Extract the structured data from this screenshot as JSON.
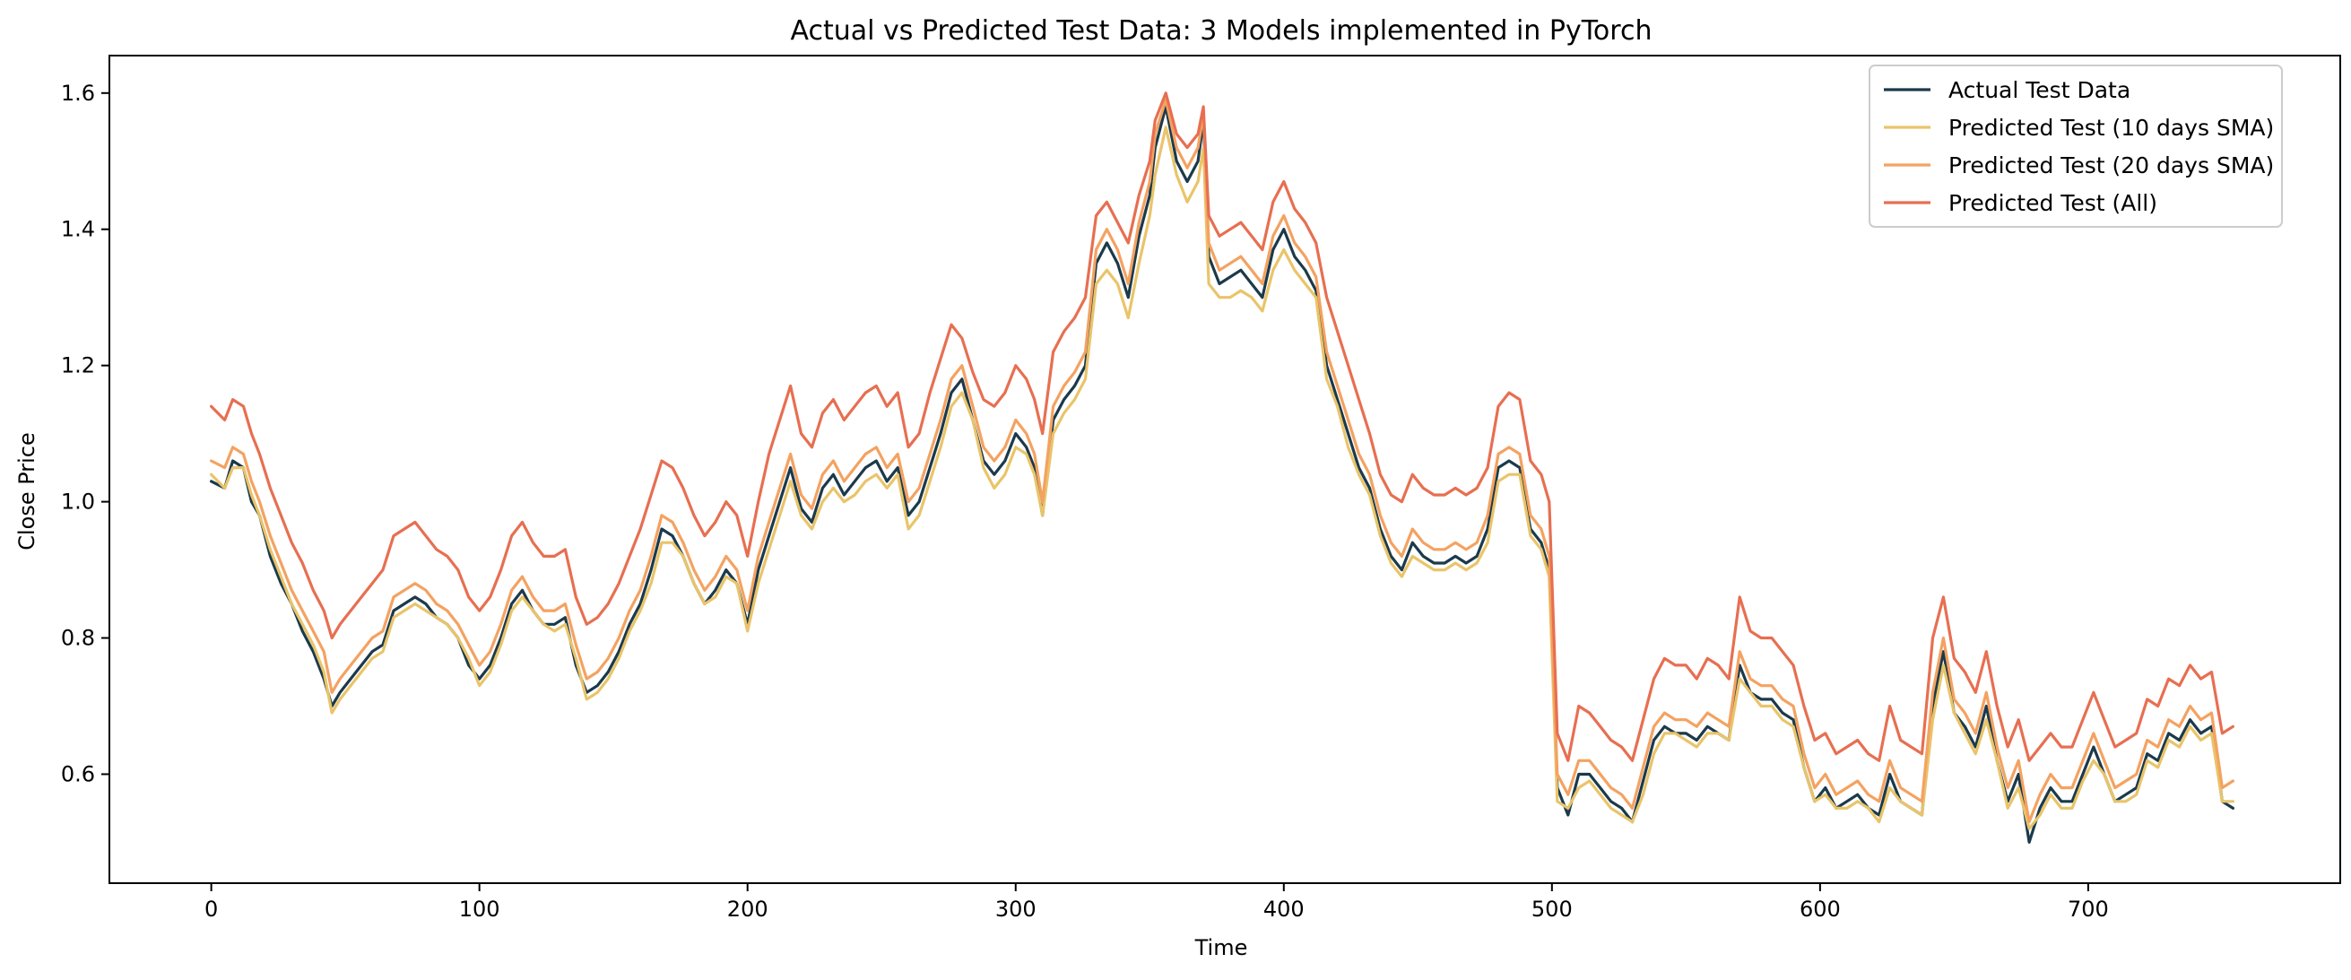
{
  "chart_data": {
    "type": "line",
    "title": "Actual vs Predicted Test Data: 3 Models implemented in PyTorch",
    "xlabel": "Time",
    "ylabel": "Close Price",
    "xlim": [
      -38,
      794
    ],
    "ylim": [
      0.44,
      1.655
    ],
    "xticks": [
      0,
      100,
      200,
      300,
      400,
      500,
      600,
      700
    ],
    "yticks": [
      0.6,
      0.8,
      1.0,
      1.2,
      1.4,
      1.6
    ],
    "grid": false,
    "legend_position": "top-right",
    "x": [
      0,
      5,
      8,
      12,
      15,
      18,
      22,
      26,
      30,
      34,
      38,
      42,
      45,
      48,
      52,
      56,
      60,
      64,
      68,
      72,
      76,
      80,
      84,
      88,
      92,
      96,
      100,
      104,
      108,
      112,
      116,
      120,
      124,
      128,
      132,
      136,
      140,
      144,
      148,
      152,
      156,
      160,
      164,
      168,
      172,
      176,
      180,
      184,
      188,
      192,
      196,
      200,
      204,
      208,
      212,
      216,
      220,
      224,
      228,
      232,
      236,
      240,
      244,
      248,
      252,
      256,
      260,
      264,
      268,
      272,
      276,
      280,
      284,
      288,
      292,
      296,
      300,
      304,
      307,
      310,
      314,
      318,
      322,
      326,
      330,
      334,
      338,
      342,
      346,
      350,
      352,
      356,
      360,
      364,
      368,
      370,
      372,
      376,
      380,
      384,
      388,
      392,
      396,
      400,
      404,
      408,
      412,
      416,
      420,
      424,
      428,
      432,
      436,
      440,
      444,
      448,
      452,
      456,
      460,
      464,
      468,
      472,
      476,
      480,
      484,
      488,
      492,
      496,
      499,
      502,
      506,
      510,
      514,
      518,
      522,
      526,
      530,
      534,
      538,
      542,
      546,
      550,
      554,
      558,
      562,
      566,
      570,
      574,
      578,
      582,
      586,
      590,
      594,
      598,
      602,
      606,
      610,
      614,
      618,
      622,
      626,
      630,
      634,
      638,
      642,
      646,
      650,
      654,
      658,
      662,
      666,
      670,
      674,
      678,
      682,
      686,
      690,
      694,
      698,
      702,
      706,
      710,
      714,
      718,
      722,
      726,
      730,
      734,
      738,
      742,
      746,
      750,
      754
    ],
    "series": [
      {
        "name": "Actual Test Data",
        "color": "#1b3a4b",
        "values": [
          1.03,
          1.02,
          1.06,
          1.05,
          1.0,
          0.98,
          0.92,
          0.88,
          0.85,
          0.81,
          0.78,
          0.74,
          0.7,
          0.72,
          0.74,
          0.76,
          0.78,
          0.79,
          0.84,
          0.85,
          0.86,
          0.85,
          0.83,
          0.82,
          0.8,
          0.76,
          0.74,
          0.76,
          0.8,
          0.85,
          0.87,
          0.84,
          0.82,
          0.82,
          0.83,
          0.76,
          0.72,
          0.73,
          0.75,
          0.78,
          0.82,
          0.85,
          0.9,
          0.96,
          0.95,
          0.92,
          0.88,
          0.85,
          0.87,
          0.9,
          0.88,
          0.82,
          0.9,
          0.95,
          1.0,
          1.05,
          0.99,
          0.97,
          1.02,
          1.04,
          1.01,
          1.03,
          1.05,
          1.06,
          1.03,
          1.05,
          0.98,
          1.0,
          1.05,
          1.1,
          1.16,
          1.18,
          1.12,
          1.06,
          1.04,
          1.06,
          1.1,
          1.08,
          1.05,
          0.98,
          1.12,
          1.15,
          1.17,
          1.2,
          1.35,
          1.38,
          1.35,
          1.3,
          1.39,
          1.45,
          1.52,
          1.58,
          1.5,
          1.47,
          1.5,
          1.56,
          1.36,
          1.32,
          1.33,
          1.34,
          1.32,
          1.3,
          1.37,
          1.4,
          1.36,
          1.34,
          1.31,
          1.2,
          1.15,
          1.1,
          1.05,
          1.02,
          0.96,
          0.92,
          0.9,
          0.94,
          0.92,
          0.91,
          0.91,
          0.92,
          0.91,
          0.92,
          0.96,
          1.05,
          1.06,
          1.05,
          0.96,
          0.94,
          0.9,
          0.58,
          0.54,
          0.6,
          0.6,
          0.58,
          0.56,
          0.55,
          0.53,
          0.59,
          0.65,
          0.67,
          0.66,
          0.66,
          0.65,
          0.67,
          0.66,
          0.65,
          0.76,
          0.72,
          0.71,
          0.71,
          0.69,
          0.68,
          0.61,
          0.56,
          0.58,
          0.55,
          0.56,
          0.57,
          0.55,
          0.54,
          0.6,
          0.56,
          0.55,
          0.54,
          0.7,
          0.78,
          0.69,
          0.67,
          0.64,
          0.7,
          0.62,
          0.56,
          0.6,
          0.5,
          0.55,
          0.58,
          0.56,
          0.56,
          0.6,
          0.64,
          0.6,
          0.56,
          0.57,
          0.58,
          0.63,
          0.62,
          0.66,
          0.65,
          0.68,
          0.66,
          0.67,
          0.56,
          0.55
        ]
      },
      {
        "name": "Predicted Test (10 days SMA)",
        "color": "#e9c46a",
        "values": [
          1.04,
          1.02,
          1.05,
          1.05,
          1.01,
          0.98,
          0.93,
          0.89,
          0.85,
          0.82,
          0.79,
          0.75,
          0.69,
          0.71,
          0.73,
          0.75,
          0.77,
          0.78,
          0.83,
          0.84,
          0.85,
          0.84,
          0.83,
          0.82,
          0.8,
          0.77,
          0.73,
          0.75,
          0.79,
          0.84,
          0.86,
          0.84,
          0.82,
          0.81,
          0.82,
          0.77,
          0.71,
          0.72,
          0.74,
          0.77,
          0.81,
          0.84,
          0.88,
          0.94,
          0.94,
          0.92,
          0.88,
          0.85,
          0.86,
          0.89,
          0.88,
          0.81,
          0.88,
          0.93,
          0.98,
          1.03,
          0.98,
          0.96,
          1.0,
          1.02,
          1.0,
          1.01,
          1.03,
          1.04,
          1.02,
          1.04,
          0.96,
          0.98,
          1.03,
          1.08,
          1.14,
          1.16,
          1.12,
          1.05,
          1.02,
          1.04,
          1.08,
          1.07,
          1.04,
          0.98,
          1.1,
          1.13,
          1.15,
          1.18,
          1.32,
          1.34,
          1.32,
          1.27,
          1.35,
          1.42,
          1.48,
          1.55,
          1.48,
          1.44,
          1.47,
          1.52,
          1.32,
          1.3,
          1.3,
          1.31,
          1.3,
          1.28,
          1.34,
          1.37,
          1.34,
          1.32,
          1.3,
          1.18,
          1.14,
          1.08,
          1.04,
          1.01,
          0.95,
          0.91,
          0.89,
          0.92,
          0.91,
          0.9,
          0.9,
          0.91,
          0.9,
          0.91,
          0.94,
          1.03,
          1.04,
          1.04,
          0.95,
          0.93,
          0.89,
          0.56,
          0.55,
          0.58,
          0.59,
          0.57,
          0.55,
          0.54,
          0.53,
          0.57,
          0.63,
          0.66,
          0.66,
          0.65,
          0.64,
          0.66,
          0.66,
          0.65,
          0.74,
          0.72,
          0.7,
          0.7,
          0.68,
          0.67,
          0.61,
          0.56,
          0.57,
          0.55,
          0.55,
          0.56,
          0.55,
          0.53,
          0.58,
          0.56,
          0.55,
          0.54,
          0.68,
          0.76,
          0.69,
          0.66,
          0.63,
          0.68,
          0.62,
          0.55,
          0.58,
          0.52,
          0.54,
          0.57,
          0.55,
          0.55,
          0.59,
          0.62,
          0.6,
          0.56,
          0.56,
          0.57,
          0.62,
          0.61,
          0.65,
          0.64,
          0.67,
          0.65,
          0.66,
          0.56,
          0.56
        ]
      },
      {
        "name": "Predicted Test (20 days SMA)",
        "color": "#f4a261",
        "values": [
          1.06,
          1.05,
          1.08,
          1.07,
          1.03,
          1.0,
          0.95,
          0.91,
          0.87,
          0.84,
          0.81,
          0.78,
          0.72,
          0.74,
          0.76,
          0.78,
          0.8,
          0.81,
          0.86,
          0.87,
          0.88,
          0.87,
          0.85,
          0.84,
          0.82,
          0.79,
          0.76,
          0.78,
          0.82,
          0.87,
          0.89,
          0.86,
          0.84,
          0.84,
          0.85,
          0.79,
          0.74,
          0.75,
          0.77,
          0.8,
          0.84,
          0.87,
          0.92,
          0.98,
          0.97,
          0.94,
          0.9,
          0.87,
          0.89,
          0.92,
          0.9,
          0.84,
          0.92,
          0.97,
          1.02,
          1.07,
          1.01,
          0.99,
          1.04,
          1.06,
          1.03,
          1.05,
          1.07,
          1.08,
          1.05,
          1.07,
          1.0,
          1.02,
          1.07,
          1.12,
          1.18,
          1.2,
          1.14,
          1.08,
          1.06,
          1.08,
          1.12,
          1.1,
          1.07,
          1.0,
          1.14,
          1.17,
          1.19,
          1.22,
          1.37,
          1.4,
          1.37,
          1.32,
          1.41,
          1.47,
          1.54,
          1.59,
          1.52,
          1.49,
          1.52,
          1.57,
          1.38,
          1.34,
          1.35,
          1.36,
          1.34,
          1.32,
          1.39,
          1.42,
          1.38,
          1.36,
          1.33,
          1.22,
          1.17,
          1.12,
          1.07,
          1.04,
          0.98,
          0.94,
          0.92,
          0.96,
          0.94,
          0.93,
          0.93,
          0.94,
          0.93,
          0.94,
          0.98,
          1.07,
          1.08,
          1.07,
          0.98,
          0.96,
          0.92,
          0.6,
          0.57,
          0.62,
          0.62,
          0.6,
          0.58,
          0.57,
          0.55,
          0.61,
          0.67,
          0.69,
          0.68,
          0.68,
          0.67,
          0.69,
          0.68,
          0.67,
          0.78,
          0.74,
          0.73,
          0.73,
          0.71,
          0.7,
          0.63,
          0.58,
          0.6,
          0.57,
          0.58,
          0.59,
          0.57,
          0.56,
          0.62,
          0.58,
          0.57,
          0.56,
          0.72,
          0.8,
          0.71,
          0.69,
          0.66,
          0.72,
          0.64,
          0.58,
          0.62,
          0.53,
          0.57,
          0.6,
          0.58,
          0.58,
          0.62,
          0.66,
          0.62,
          0.58,
          0.59,
          0.6,
          0.65,
          0.64,
          0.68,
          0.67,
          0.7,
          0.68,
          0.69,
          0.58,
          0.59
        ]
      },
      {
        "name": "Predicted Test (All)",
        "color": "#e76f51",
        "values": [
          1.14,
          1.12,
          1.15,
          1.14,
          1.1,
          1.07,
          1.02,
          0.98,
          0.94,
          0.91,
          0.87,
          0.84,
          0.8,
          0.82,
          0.84,
          0.86,
          0.88,
          0.9,
          0.95,
          0.96,
          0.97,
          0.95,
          0.93,
          0.92,
          0.9,
          0.86,
          0.84,
          0.86,
          0.9,
          0.95,
          0.97,
          0.94,
          0.92,
          0.92,
          0.93,
          0.86,
          0.82,
          0.83,
          0.85,
          0.88,
          0.92,
          0.96,
          1.01,
          1.06,
          1.05,
          1.02,
          0.98,
          0.95,
          0.97,
          1.0,
          0.98,
          0.92,
          1.0,
          1.07,
          1.12,
          1.17,
          1.1,
          1.08,
          1.13,
          1.15,
          1.12,
          1.14,
          1.16,
          1.17,
          1.14,
          1.16,
          1.08,
          1.1,
          1.16,
          1.21,
          1.26,
          1.24,
          1.19,
          1.15,
          1.14,
          1.16,
          1.2,
          1.18,
          1.15,
          1.1,
          1.22,
          1.25,
          1.27,
          1.3,
          1.42,
          1.44,
          1.41,
          1.38,
          1.45,
          1.5,
          1.56,
          1.6,
          1.54,
          1.52,
          1.54,
          1.58,
          1.42,
          1.39,
          1.4,
          1.41,
          1.39,
          1.37,
          1.44,
          1.47,
          1.43,
          1.41,
          1.38,
          1.3,
          1.25,
          1.2,
          1.15,
          1.1,
          1.04,
          1.01,
          1.0,
          1.04,
          1.02,
          1.01,
          1.01,
          1.02,
          1.01,
          1.02,
          1.05,
          1.14,
          1.16,
          1.15,
          1.06,
          1.04,
          1.0,
          0.66,
          0.62,
          0.7,
          0.69,
          0.67,
          0.65,
          0.64,
          0.62,
          0.68,
          0.74,
          0.77,
          0.76,
          0.76,
          0.74,
          0.77,
          0.76,
          0.74,
          0.86,
          0.81,
          0.8,
          0.8,
          0.78,
          0.76,
          0.7,
          0.65,
          0.66,
          0.63,
          0.64,
          0.65,
          0.63,
          0.62,
          0.7,
          0.65,
          0.64,
          0.63,
          0.8,
          0.86,
          0.77,
          0.75,
          0.72,
          0.78,
          0.7,
          0.64,
          0.68,
          0.62,
          0.64,
          0.66,
          0.64,
          0.64,
          0.68,
          0.72,
          0.68,
          0.64,
          0.65,
          0.66,
          0.71,
          0.7,
          0.74,
          0.73,
          0.76,
          0.74,
          0.75,
          0.66,
          0.67
        ]
      }
    ]
  }
}
